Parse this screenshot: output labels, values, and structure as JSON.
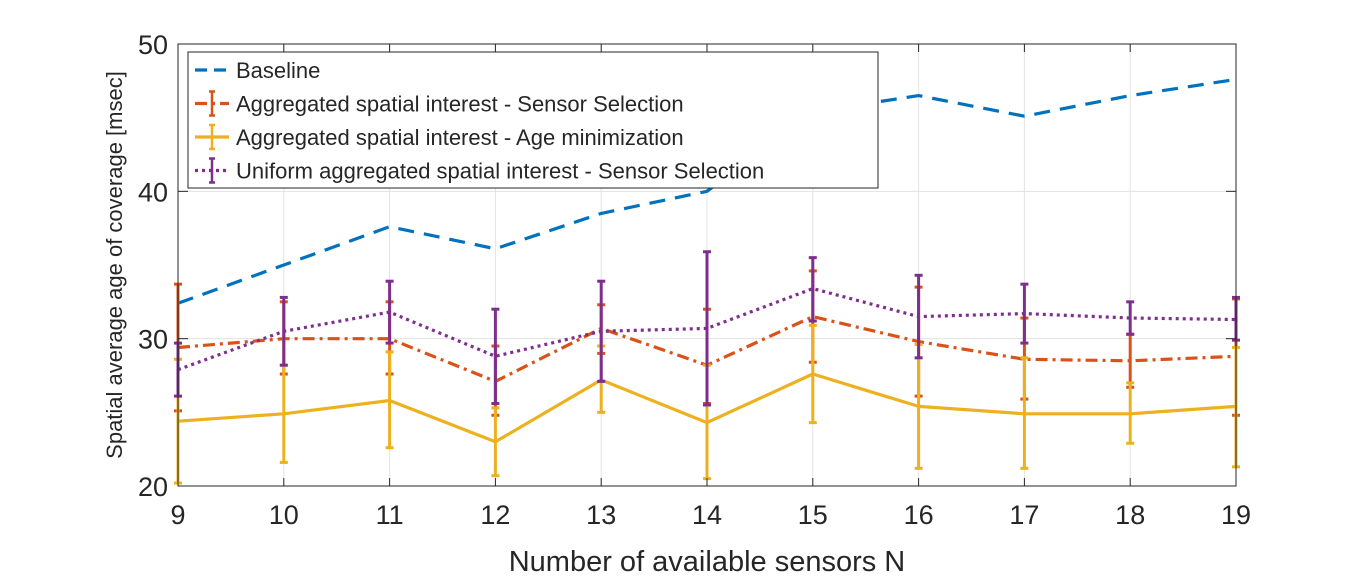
{
  "chart_data": {
    "type": "line",
    "xlabel": "Number of available sensors N",
    "ylabel": "Spatial average age of coverage [msec]",
    "x": [
      9,
      10,
      11,
      12,
      13,
      14,
      15,
      16,
      17,
      18,
      19
    ],
    "xlim": [
      9,
      19
    ],
    "ylim": [
      20,
      50
    ],
    "xticks": [
      "9",
      "10",
      "11",
      "12",
      "13",
      "14",
      "15",
      "16",
      "17",
      "18",
      "19"
    ],
    "yticks": [
      "20",
      "30",
      "40",
      "50"
    ],
    "grid": true,
    "legend_position": "top-left",
    "series": [
      {
        "name": "Baseline",
        "color": "#0072BD",
        "line_style": "dashed",
        "values": [
          32.4,
          35.0,
          37.6,
          36.1,
          38.5,
          40.0,
          45.4,
          46.5,
          45.1,
          46.5,
          47.6
        ]
      },
      {
        "name": "Aggregated spatial interest - Sensor Selection",
        "color": "#D95319",
        "line_style": "dash-dot",
        "values": [
          29.4,
          30.0,
          30.0,
          27.1,
          30.7,
          28.2,
          31.5,
          29.8,
          28.6,
          28.5,
          28.8
        ],
        "err_low": [
          25.1,
          27.6,
          27.6,
          24.8,
          29.0,
          25.6,
          28.4,
          26.1,
          25.9,
          26.7,
          24.8
        ],
        "err_high": [
          33.7,
          32.5,
          32.5,
          29.5,
          32.3,
          32.0,
          34.6,
          33.5,
          31.4,
          30.3,
          32.7
        ]
      },
      {
        "name": "Aggregated spatial interest - Age minimization",
        "color": "#EDB120",
        "line_style": "solid",
        "values": [
          24.4,
          24.9,
          25.8,
          23.0,
          27.2,
          24.3,
          27.6,
          25.4,
          24.9,
          24.9,
          25.4
        ],
        "err_low": [
          20.2,
          21.6,
          22.6,
          20.7,
          25.0,
          20.5,
          24.3,
          21.2,
          21.2,
          22.9,
          21.3
        ],
        "err_high": [
          28.6,
          28.2,
          29.1,
          25.3,
          29.5,
          28.2,
          30.9,
          29.6,
          28.7,
          27.0,
          29.4
        ]
      },
      {
        "name": "Uniform aggregated spatial interest - Sensor Selection",
        "color": "#7E2F8E",
        "line_style": "dotted",
        "values": [
          27.9,
          30.5,
          31.8,
          28.8,
          30.5,
          30.7,
          33.4,
          31.5,
          31.7,
          31.4,
          31.3
        ],
        "err_low": [
          26.1,
          28.2,
          29.7,
          25.6,
          27.1,
          25.5,
          31.2,
          28.7,
          29.7,
          30.3,
          29.9
        ],
        "err_high": [
          29.7,
          32.8,
          33.9,
          32.0,
          33.9,
          35.9,
          35.5,
          34.3,
          33.7,
          32.5,
          32.8
        ]
      }
    ]
  }
}
